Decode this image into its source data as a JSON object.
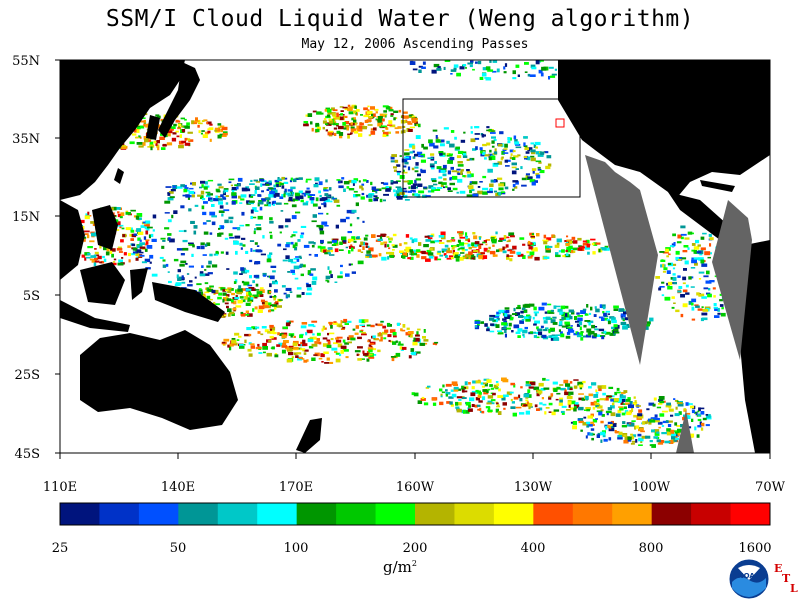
{
  "header": {
    "title": "SSM/I Cloud Liquid Water (Weng algorithm)",
    "subtitle": "May 12, 2006  Ascending Passes"
  },
  "map": {
    "lat_labels": [
      "55N",
      "35N",
      "15N",
      "5S",
      "25S",
      "45S"
    ],
    "lon_labels": [
      "110E",
      "140E",
      "170E",
      "160W",
      "130W",
      "100W",
      "70W"
    ],
    "colors": {
      "ocean_background": "#ffffff",
      "land": "#000000",
      "no_data": "#646464",
      "frame": "#000000"
    }
  },
  "colorbar": {
    "colors": [
      "#00147d",
      "#0032c8",
      "#0050ff",
      "#009696",
      "#00c8c8",
      "#00ffff",
      "#009600",
      "#00c800",
      "#00ff00",
      "#b4b400",
      "#dcdc00",
      "#ffff00",
      "#ff5000",
      "#ff7800",
      "#ffa000",
      "#8c0000",
      "#c80000",
      "#ff0000"
    ],
    "tick_labels": [
      "25",
      "50",
      "100",
      "200",
      "400",
      "800",
      "1600"
    ],
    "unit": "g/m",
    "unit_exponent": "2"
  },
  "logos": {
    "noaa_text": "NOAA",
    "etl_letters": [
      "E",
      "T",
      "L"
    ]
  }
}
